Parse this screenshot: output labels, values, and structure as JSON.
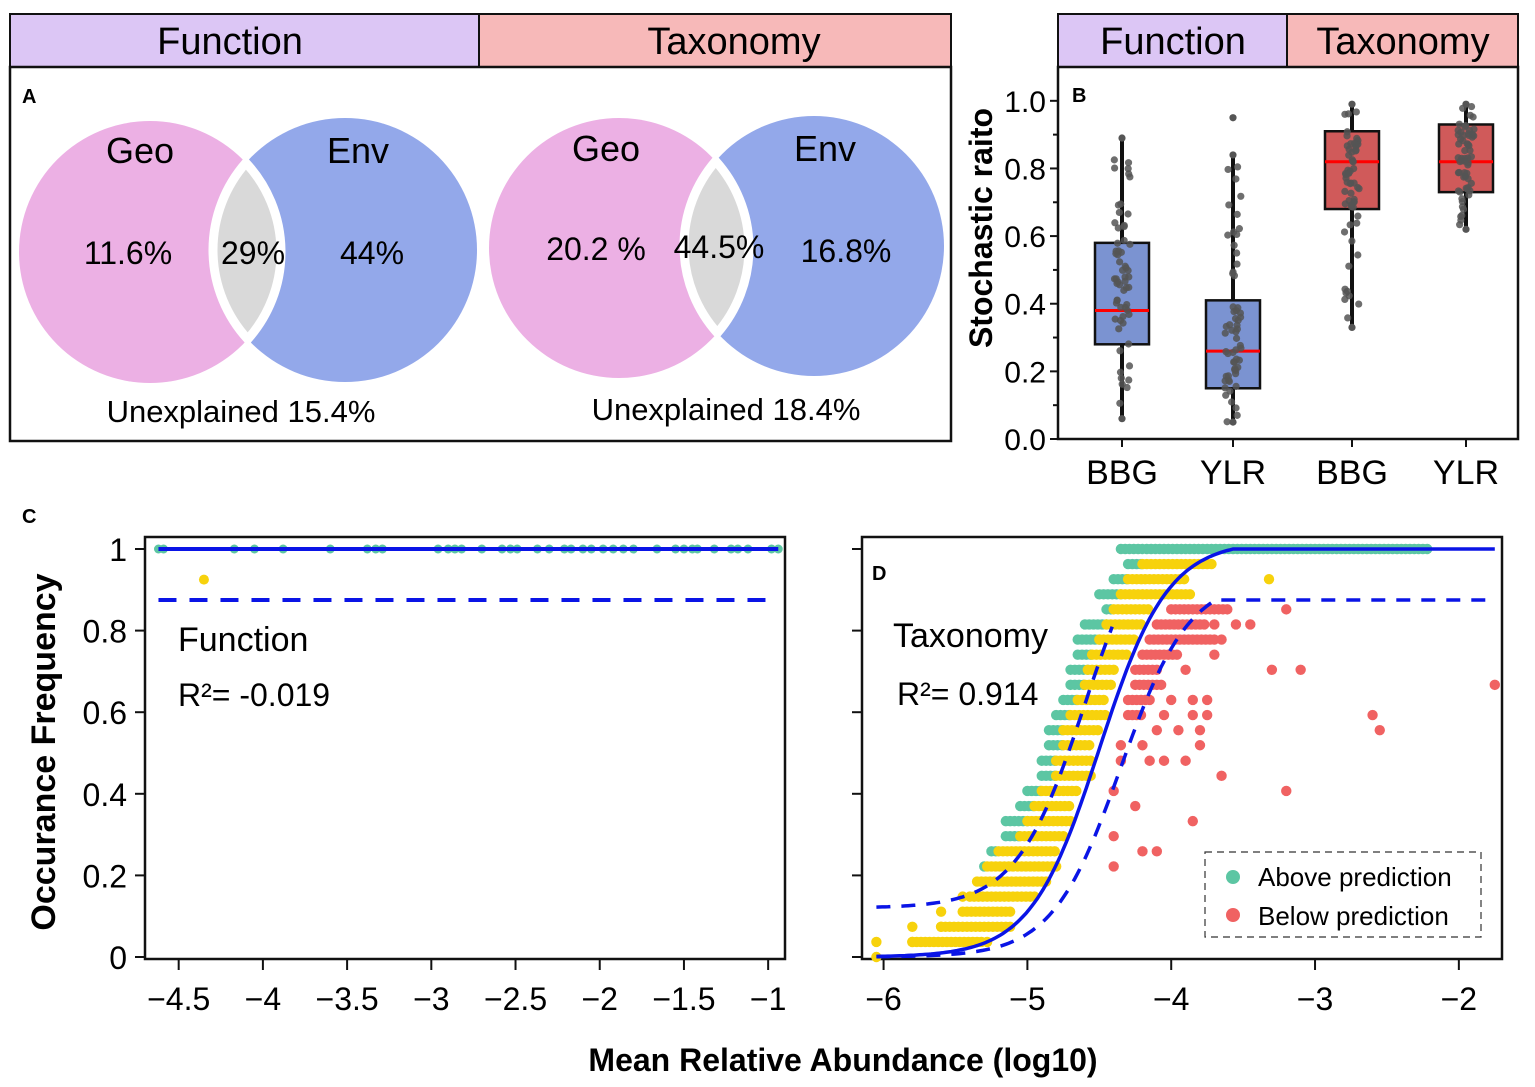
{
  "colors": {
    "function_header": "#dcc6f5",
    "taxonomy_header": "#f7b9b9",
    "geo": "#ecb0e4",
    "env": "#93a8ea",
    "overlap": "#d9d9d9",
    "box_function": "#7b93d1",
    "box_taxonomy": "#d05a5a",
    "median": "#ff0000",
    "jitter": "#555555",
    "above": "#5cc6a3",
    "below": "#f06262",
    "neutral": "#f7d20c",
    "fit_line": "#0a14e6"
  },
  "chart_data": [
    {
      "panel": "A",
      "type": "venn",
      "header": [
        "Function",
        "Taxonomy"
      ],
      "venns": [
        {
          "name": "Function",
          "sets": [
            "Geo",
            "Env"
          ],
          "geo_only": "11.6%",
          "overlap": "29%",
          "env_only": "44%",
          "unexplained": "Unexplained 15.4%"
        },
        {
          "name": "Taxonomy",
          "sets": [
            "Geo",
            "Env"
          ],
          "geo_only": "20.2 %",
          "overlap": "44.5%",
          "env_only": "16.8%",
          "unexplained": "Unexplained 18.4%"
        }
      ]
    },
    {
      "panel": "B",
      "type": "box",
      "header": [
        "Function",
        "Taxonomy"
      ],
      "ylabel": "Stochastic raito",
      "ylim": [
        0,
        1.1
      ],
      "yticks": [
        0.0,
        0.2,
        0.4,
        0.6,
        0.8,
        1.0
      ],
      "ytick_labels": [
        "0.0",
        "0.2",
        "0.4",
        "0.6",
        "0.8",
        "1.0"
      ],
      "categories": [
        "BBG",
        "YLR",
        "BBG",
        "YLR"
      ],
      "groups": [
        "Function",
        "Function",
        "Taxonomy",
        "Taxonomy"
      ],
      "boxes": [
        {
          "min": 0.06,
          "q1": 0.28,
          "median": 0.38,
          "q3": 0.58,
          "max": 0.89
        },
        {
          "min": 0.05,
          "q1": 0.15,
          "median": 0.26,
          "q3": 0.41,
          "max": 0.84,
          "outliers": [
            0.95
          ]
        },
        {
          "min": 0.33,
          "q1": 0.68,
          "median": 0.82,
          "q3": 0.91,
          "max": 0.99
        },
        {
          "min": 0.62,
          "q1": 0.73,
          "median": 0.82,
          "q3": 0.93,
          "max": 0.99
        }
      ]
    },
    {
      "panel": "C",
      "type": "scatter",
      "annotation_title": "Function",
      "annotation_r2": "R²= -0.019",
      "ylabel": "Occurance Frequency",
      "xlim": [
        -4.7,
        -0.9
      ],
      "ylim": [
        0,
        1
      ],
      "xticks": [
        -4.5,
        -4,
        -3.5,
        -3,
        -2.5,
        -2,
        -1.5,
        -1
      ],
      "xtick_labels": [
        "−4.5",
        "−4",
        "−3.5",
        "−3",
        "−2.5",
        "−2",
        "−1.5",
        "−1"
      ],
      "yticks": [
        0,
        0.2,
        0.4,
        0.6,
        0.8,
        1
      ],
      "ytick_labels": [
        "0",
        "0.2",
        "0.4",
        "0.6",
        "0.8",
        "1"
      ],
      "fit_y": 1.0,
      "lower_ci_y": 0.875,
      "neutral_points": [
        [
          -4.35,
          0.925
        ]
      ],
      "above_x": [
        -4.62,
        -4.59,
        -4.17,
        -4.05,
        -3.88,
        -3.6,
        -3.38,
        -3.33,
        -3.29,
        -2.96,
        -2.9,
        -2.86,
        -2.82,
        -2.7,
        -2.58,
        -2.53,
        -2.49,
        -2.37,
        -2.3,
        -2.21,
        -2.17,
        -2.1,
        -2.05,
        -1.98,
        -1.92,
        -1.86,
        -1.8,
        -1.66,
        -1.55,
        -1.5,
        -1.45,
        -1.42,
        -1.32,
        -1.22,
        -1.18,
        -1.12,
        -0.98,
        -0.94
      ]
    },
    {
      "panel": "D",
      "type": "scatter",
      "annotation_title": "Taxonomy",
      "annotation_r2": "R²= 0.914",
      "xlim": [
        -6.15,
        -1.7
      ],
      "ylim": [
        0,
        1
      ],
      "xticks": [
        -6,
        -5,
        -4,
        -3,
        -2
      ],
      "xtick_labels": [
        "−6",
        "−5",
        "−4",
        "−3",
        "−2"
      ],
      "yticks": [
        0,
        0.2,
        0.4,
        0.6,
        0.8,
        1
      ],
      "fit": {
        "type": "sigmoid",
        "midpoint": -4.5,
        "slope": 4.2
      },
      "upper_ci_plateau": 1.0,
      "lower_ci_plateau": 0.875,
      "legend": [
        "Above prediction",
        "Below prediction"
      ],
      "legend_position": "bottom-right",
      "row_step": 0.037,
      "rows_above_range": [
        [
          1.0,
          -4.35,
          -2.2
        ],
        [
          0.963,
          -4.3,
          -4.2
        ],
        [
          0.926,
          -4.4,
          -4.3
        ],
        [
          0.889,
          -4.5,
          -4.35
        ],
        [
          0.852,
          -4.45,
          -4.4
        ],
        [
          0.815,
          -4.6,
          -4.45
        ],
        [
          0.778,
          -4.65,
          -4.5
        ],
        [
          0.741,
          -4.65,
          -4.55
        ],
        [
          0.704,
          -4.7,
          -4.58
        ],
        [
          0.667,
          -4.7,
          -4.6
        ],
        [
          0.63,
          -4.75,
          -4.65
        ],
        [
          0.593,
          -4.8,
          -4.7
        ],
        [
          0.556,
          -4.85,
          -4.75
        ],
        [
          0.519,
          -4.85,
          -4.75
        ],
        [
          0.481,
          -4.9,
          -4.8
        ],
        [
          0.444,
          -4.9,
          -4.8
        ],
        [
          0.407,
          -5.0,
          -4.9
        ],
        [
          0.37,
          -5.05,
          -4.95
        ],
        [
          0.333,
          -5.15,
          -5.0
        ],
        [
          0.296,
          -5.15,
          -5.05
        ],
        [
          0.259,
          -5.25,
          -5.2
        ],
        [
          0.222,
          -5.3,
          -5.28
        ]
      ],
      "rows_neutral_range": [
        [
          0.963,
          -4.2,
          -3.7
        ],
        [
          0.926,
          -4.3,
          -3.9
        ],
        [
          0.889,
          -4.35,
          -3.85
        ],
        [
          0.852,
          -4.4,
          -4.15
        ],
        [
          0.815,
          -4.45,
          -4.2
        ],
        [
          0.778,
          -4.5,
          -4.25
        ],
        [
          0.741,
          -4.55,
          -4.3
        ],
        [
          0.704,
          -4.58,
          -4.4
        ],
        [
          0.667,
          -4.6,
          -4.4
        ],
        [
          0.63,
          -4.65,
          -4.45
        ],
        [
          0.593,
          -4.7,
          -4.45
        ],
        [
          0.556,
          -4.75,
          -4.5
        ],
        [
          0.519,
          -4.75,
          -4.55
        ],
        [
          0.481,
          -4.8,
          -4.55
        ],
        [
          0.444,
          -4.8,
          -4.55
        ],
        [
          0.407,
          -4.9,
          -4.65
        ],
        [
          0.37,
          -4.95,
          -4.7
        ],
        [
          0.333,
          -5.0,
          -4.7
        ],
        [
          0.296,
          -5.05,
          -4.75
        ],
        [
          0.259,
          -5.2,
          -4.8
        ],
        [
          0.222,
          -5.28,
          -4.8
        ],
        [
          0.185,
          -5.35,
          -4.85
        ],
        [
          0.148,
          -5.4,
          -4.95
        ],
        [
          0.111,
          -5.45,
          -5.1
        ],
        [
          0.074,
          -5.6,
          -5.1
        ],
        [
          0.037,
          -5.8,
          -5.3
        ],
        [
          0.0,
          -6.05,
          -6.05
        ]
      ],
      "neutral_points": [
        [
          -3.32,
          0.926
        ],
        [
          -5.45,
          0.148
        ],
        [
          -5.6,
          0.111
        ],
        [
          -5.6,
          0.074
        ],
        [
          -5.8,
          0.074
        ],
        [
          -5.8,
          0.037
        ],
        [
          -6.05,
          0.037
        ],
        [
          -5.28,
          0.037
        ]
      ],
      "rows_below_range": [
        [
          0.852,
          -4.0,
          -3.6
        ],
        [
          0.815,
          -4.1,
          -3.75
        ],
        [
          0.778,
          -4.15,
          -3.7
        ],
        [
          0.741,
          -4.2,
          -3.95
        ],
        [
          0.704,
          -4.25,
          -4.1
        ],
        [
          0.667,
          -4.25,
          -4.05
        ],
        [
          0.63,
          -4.3,
          -4.15
        ],
        [
          0.593,
          -4.3,
          -4.2
        ]
      ],
      "below_points": [
        [
          -3.2,
          0.852
        ],
        [
          -3.7,
          0.815
        ],
        [
          -3.55,
          0.815
        ],
        [
          -3.45,
          0.815
        ],
        [
          -3.65,
          0.778
        ],
        [
          -3.7,
          0.741
        ],
        [
          -3.9,
          0.704
        ],
        [
          -3.3,
          0.704
        ],
        [
          -3.1,
          0.704
        ],
        [
          -1.75,
          0.667
        ],
        [
          -4.0,
          0.63
        ],
        [
          -3.85,
          0.63
        ],
        [
          -3.75,
          0.63
        ],
        [
          -4.05,
          0.593
        ],
        [
          -3.85,
          0.593
        ],
        [
          -3.75,
          0.593
        ],
        [
          -2.6,
          0.593
        ],
        [
          -4.1,
          0.556
        ],
        [
          -3.95,
          0.556
        ],
        [
          -3.8,
          0.556
        ],
        [
          -2.55,
          0.556
        ],
        [
          -4.35,
          0.519
        ],
        [
          -4.2,
          0.519
        ],
        [
          -3.8,
          0.519
        ],
        [
          -4.35,
          0.481
        ],
        [
          -4.15,
          0.481
        ],
        [
          -4.05,
          0.481
        ],
        [
          -3.9,
          0.481
        ],
        [
          -3.65,
          0.444
        ],
        [
          -4.4,
          0.407
        ],
        [
          -3.2,
          0.407
        ],
        [
          -4.25,
          0.37
        ],
        [
          -3.85,
          0.333
        ],
        [
          -4.4,
          0.296
        ],
        [
          -4.2,
          0.259
        ],
        [
          -4.1,
          0.259
        ],
        [
          -4.4,
          0.222
        ]
      ]
    }
  ],
  "panel_labels": {
    "a": "A",
    "b": "B",
    "c": "C",
    "d": "D"
  },
  "shared_xlabel": "Mean Relative Abundance (log10)"
}
